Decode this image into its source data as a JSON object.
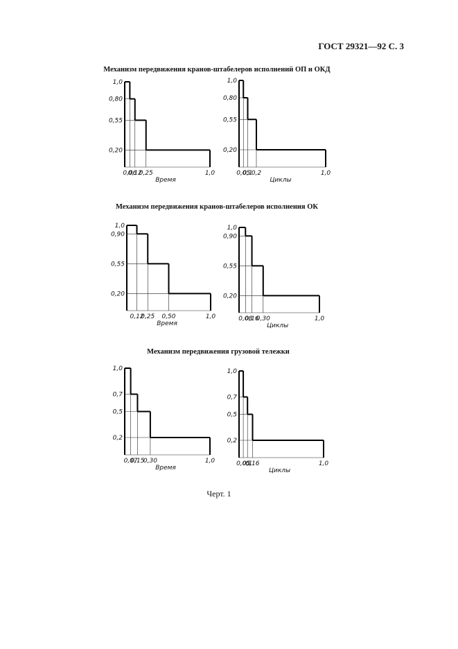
{
  "header": "ГОСТ 29321—92 С. 3",
  "sections": [
    {
      "title": "Механизм передвижения кранов-штабелеров исполнений ОП и ОКД",
      "charts": [
        {
          "type": "step",
          "bins": [
            0,
            0.06,
            0.12,
            0.25,
            1.0
          ],
          "values": [
            1.0,
            0.8,
            0.55,
            0.2
          ],
          "xlim": [
            0,
            1.0
          ],
          "ylim": [
            0,
            1.0
          ],
          "xticks": [
            {
              "value": 0.06,
              "label": "0,06"
            },
            {
              "value": 0.12,
              "label": "0,12"
            },
            {
              "value": 0.25,
              "label": "0,25"
            },
            {
              "value": 1.0,
              "label": "1,0"
            }
          ],
          "yticks": [
            {
              "value": 1.0,
              "label": "1,0"
            },
            {
              "value": 0.8,
              "label": "0,80"
            },
            {
              "value": 0.55,
              "label": "0,55"
            },
            {
              "value": 0.2,
              "label": "0,20"
            }
          ],
          "x_label": "Время"
        },
        {
          "type": "step",
          "bins": [
            0,
            0.05,
            0.1,
            0.2,
            1.0
          ],
          "values": [
            1.0,
            0.8,
            0.55,
            0.2
          ],
          "xlim": [
            0,
            1.0
          ],
          "ylim": [
            0,
            1.0
          ],
          "xticks": [
            {
              "value": 0.05,
              "label": "0,05"
            },
            {
              "value": 0.1,
              "label": "0,1"
            },
            {
              "value": 0.2,
              "label": "0,2"
            },
            {
              "value": 1.0,
              "label": "1,0"
            }
          ],
          "yticks": [
            {
              "value": 1.0,
              "label": "1,0"
            },
            {
              "value": 0.8,
              "label": "0,80"
            },
            {
              "value": 0.55,
              "label": "0,55"
            },
            {
              "value": 0.2,
              "label": "0,20"
            }
          ],
          "x_label": "Циклы"
        }
      ]
    },
    {
      "title": "Механизм передвижения кранов-штабелеров исполнения ОК",
      "charts": [
        {
          "type": "step",
          "bins": [
            0,
            0.12,
            0.25,
            0.5,
            1.0
          ],
          "values": [
            1.0,
            0.9,
            0.55,
            0.2
          ],
          "xlim": [
            0,
            1.0
          ],
          "ylim": [
            0,
            1.0
          ],
          "xticks": [
            {
              "value": 0.12,
              "label": "0,12"
            },
            {
              "value": 0.25,
              "label": "0,25"
            },
            {
              "value": 0.5,
              "label": "0,50"
            },
            {
              "value": 1.0,
              "label": "1,0"
            }
          ],
          "yticks": [
            {
              "value": 1.0,
              "label": "1,0"
            },
            {
              "value": 0.9,
              "label": "0,90"
            },
            {
              "value": 0.55,
              "label": "0,55"
            },
            {
              "value": 0.2,
              "label": "0,20"
            }
          ],
          "x_label": "Время"
        },
        {
          "type": "step",
          "bins": [
            0,
            0.08,
            0.16,
            0.3,
            1.0
          ],
          "values": [
            1.0,
            0.9,
            0.55,
            0.2
          ],
          "xlim": [
            0,
            1.0
          ],
          "ylim": [
            0,
            1.0
          ],
          "xticks": [
            {
              "value": 0.08,
              "label": "0,08"
            },
            {
              "value": 0.16,
              "label": "0,16"
            },
            {
              "value": 0.3,
              "label": "0,30"
            },
            {
              "value": 1.0,
              "label": "1,0"
            }
          ],
          "yticks": [
            {
              "value": 1.0,
              "label": "1,0"
            },
            {
              "value": 0.9,
              "label": "0,90"
            },
            {
              "value": 0.55,
              "label": "0,55"
            },
            {
              "value": 0.2,
              "label": "0,20"
            }
          ],
          "x_label": "Циклы"
        }
      ]
    },
    {
      "title": "Механизм передвижения грузовой тележки",
      "charts": [
        {
          "type": "step",
          "bins": [
            0,
            0.07,
            0.15,
            0.3,
            1.0
          ],
          "values": [
            1.0,
            0.7,
            0.5,
            0.2
          ],
          "xlim": [
            0,
            1.0
          ],
          "ylim": [
            0,
            1.0
          ],
          "xticks": [
            {
              "value": 0.07,
              "label": "0,07"
            },
            {
              "value": 0.15,
              "label": "0,15"
            },
            {
              "value": 0.3,
              "label": "0,30"
            },
            {
              "value": 1.0,
              "label": "1,0"
            }
          ],
          "yticks": [
            {
              "value": 1.0,
              "label": "1,0"
            },
            {
              "value": 0.7,
              "label": "0,7"
            },
            {
              "value": 0.5,
              "label": "0,5"
            },
            {
              "value": 0.2,
              "label": "0,2"
            }
          ],
          "x_label": "Время"
        },
        {
          "type": "step",
          "bins": [
            0,
            0.05,
            0.1,
            0.16,
            1.0
          ],
          "values": [
            1.0,
            0.7,
            0.5,
            0.2
          ],
          "xlim": [
            0,
            1.0
          ],
          "ylim": [
            0,
            1.0
          ],
          "xticks": [
            {
              "value": 0.05,
              "label": "0,05"
            },
            {
              "value": 0.1,
              "label": "0,1"
            },
            {
              "value": 0.16,
              "label": "0,16"
            },
            {
              "value": 1.0,
              "label": "1,0"
            }
          ],
          "yticks": [
            {
              "value": 1.0,
              "label": "1,0"
            },
            {
              "value": 0.7,
              "label": "0,7"
            },
            {
              "value": 0.5,
              "label": "0,5"
            },
            {
              "value": 0.2,
              "label": "0,2"
            }
          ],
          "x_label": "Циклы"
        }
      ]
    }
  ],
  "caption": "Черт. 1"
}
